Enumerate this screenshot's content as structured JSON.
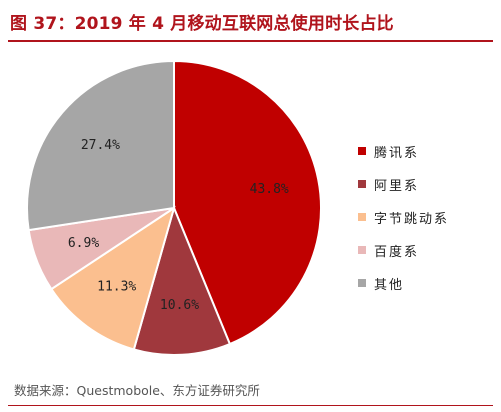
{
  "header": {
    "title": "图 37：2019 年 4 月移动互联网总使用时长占比"
  },
  "source": {
    "text": "数据来源：Questmobole、东方证券研究所"
  },
  "chart_data": {
    "type": "pie",
    "categories": [
      "腾讯系",
      "阿里系",
      "字节跳动系",
      "百度系",
      "其他"
    ],
    "values": [
      43.8,
      10.6,
      11.3,
      6.9,
      27.4
    ],
    "labels": [
      "43.8%",
      "10.6%",
      "11.3%",
      "6.9%",
      "27.4%"
    ],
    "colors": [
      "#c00000",
      "#a0383d",
      "#fbbf8f",
      "#e9b8b8",
      "#a6a6a6"
    ],
    "legend_position": "right"
  }
}
